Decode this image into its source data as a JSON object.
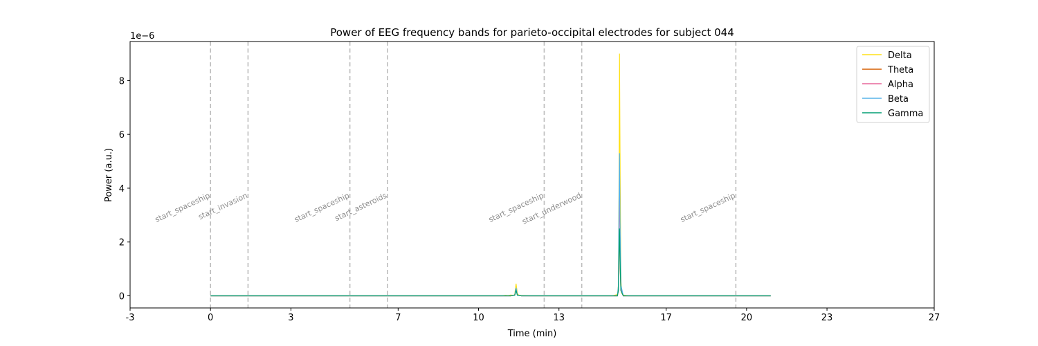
{
  "chart_data": {
    "type": "line",
    "title": "Power of EEG frequency bands for parieto-occipital electrodes for subject 044",
    "xlabel": "Time (min)",
    "ylabel": "Power (a.u.)",
    "y_offset_text": "1e−6",
    "y_scale": 1e-06,
    "xlim": [
      -3,
      27
    ],
    "ylim": [
      -0.45,
      9.45
    ],
    "x_tick_values": [
      -3,
      0,
      3,
      7,
      10,
      13,
      17,
      20,
      23,
      27
    ],
    "x_tick_labels": [
      "-3",
      "0",
      "3",
      "7",
      "10",
      "13",
      "17",
      "20",
      "23",
      "27"
    ],
    "y_tick_values": [
      0,
      2,
      4,
      6,
      8
    ],
    "y_tick_labels": [
      "0",
      "2",
      "4",
      "6",
      "8"
    ],
    "grid": false,
    "legend_position": "top-right",
    "events": [
      {
        "label": "start_spaceship",
        "x": 0.0
      },
      {
        "label": "start_invasion",
        "x": 1.4
      },
      {
        "label": "start_spaceship",
        "x": 5.2
      },
      {
        "label": "start_asteroids",
        "x": 6.6
      },
      {
        "label": "start_spaceship",
        "x": 12.45
      },
      {
        "label": "start_underwood",
        "x": 13.85
      },
      {
        "label": "start_spaceship",
        "x": 19.6
      }
    ],
    "series": [
      {
        "name": "Delta",
        "color": "#ffe119",
        "x": [
          0,
          10.9,
          11.0,
          11.1,
          11.2,
          11.3,
          11.35,
          11.4,
          11.45,
          11.5,
          11.55,
          11.6,
          11.7,
          11.9,
          12.0,
          15.0,
          15.18,
          15.22,
          15.24,
          15.26,
          15.28,
          15.31,
          15.34,
          15.4,
          15.6,
          20.9
        ],
        "y": [
          0,
          0,
          0.02,
          0.01,
          0.03,
          0.02,
          0.05,
          0.45,
          0.08,
          0.03,
          0.02,
          0.01,
          0.01,
          0,
          0,
          0,
          0.05,
          0.4,
          4.0,
          9.0,
          5.0,
          0.6,
          0.1,
          0.03,
          0,
          0
        ]
      },
      {
        "name": "Theta",
        "color": "#d55e00",
        "x": [
          0,
          11.2,
          11.35,
          11.4,
          11.45,
          11.6,
          15.18,
          15.22,
          15.24,
          15.26,
          15.28,
          15.31,
          15.4,
          20.9
        ],
        "y": [
          0,
          0,
          0.03,
          0.25,
          0.03,
          0,
          0,
          0.2,
          1.8,
          2.5,
          1.2,
          0.2,
          0,
          0
        ]
      },
      {
        "name": "Alpha",
        "color": "#e7679a",
        "x": [
          0,
          11.2,
          11.35,
          11.4,
          11.45,
          11.6,
          15.18,
          15.22,
          15.24,
          15.26,
          15.28,
          15.31,
          15.4,
          20.9
        ],
        "y": [
          0,
          0,
          0.03,
          0.28,
          0.03,
          0,
          0,
          0.3,
          2.5,
          4.5,
          2.0,
          0.3,
          0,
          0
        ]
      },
      {
        "name": "Beta",
        "color": "#56b4e9",
        "x": [
          0,
          11.2,
          11.35,
          11.4,
          11.45,
          11.6,
          15.18,
          15.22,
          15.24,
          15.26,
          15.28,
          15.31,
          15.4,
          20.9
        ],
        "y": [
          0,
          0,
          0.03,
          0.3,
          0.03,
          0,
          0,
          0.4,
          3.5,
          5.3,
          2.8,
          0.4,
          0,
          0
        ]
      },
      {
        "name": "Gamma",
        "color": "#009e73",
        "x": [
          0,
          11.2,
          11.35,
          11.4,
          11.45,
          11.6,
          15.18,
          15.22,
          15.24,
          15.26,
          15.28,
          15.31,
          15.4,
          20.9
        ],
        "y": [
          0,
          0,
          0.02,
          0.2,
          0.02,
          0,
          0,
          0.2,
          1.6,
          2.5,
          1.3,
          0.2,
          0,
          0
        ]
      }
    ]
  }
}
